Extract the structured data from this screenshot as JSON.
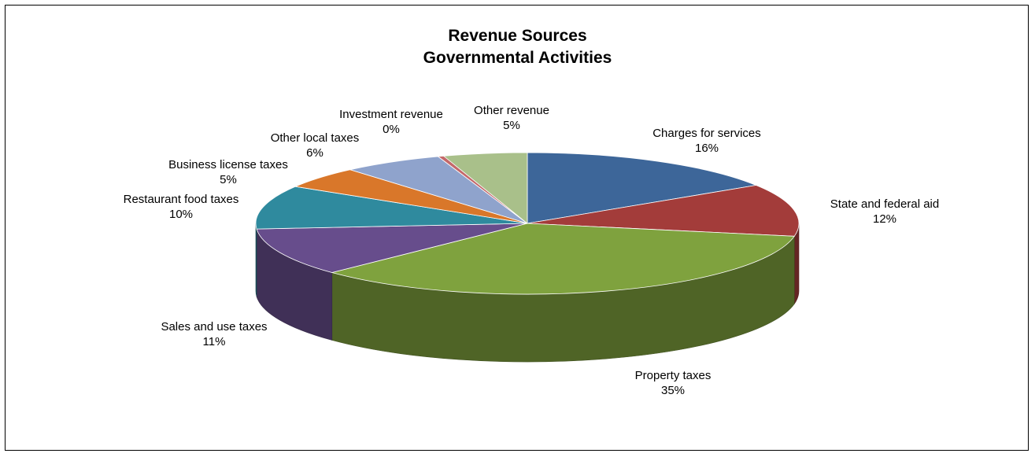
{
  "chart_data": {
    "type": "pie",
    "title": [
      "Revenue Sources",
      "Governmental Activities"
    ],
    "three_d": true,
    "slices": [
      {
        "name": "Charges for services",
        "value": 16,
        "label": "16%",
        "color": "#3D6699"
      },
      {
        "name": "State and federal aid",
        "value": 12,
        "label": "12%",
        "color": "#A33C3A"
      },
      {
        "name": "Property taxes",
        "value": 35,
        "label": "35%",
        "color": "#7FA23E"
      },
      {
        "name": "Sales and use taxes",
        "value": 11,
        "label": "11%",
        "color": "#674D8C"
      },
      {
        "name": "Restaurant food taxes",
        "value": 10,
        "label": "10%",
        "color": "#2F8A9E"
      },
      {
        "name": "Business license taxes",
        "value": 5,
        "label": "5%",
        "color": "#D9772A"
      },
      {
        "name": "Other local taxes",
        "value": 6,
        "label": "6%",
        "color": "#8FA3CC"
      },
      {
        "name": "Investment revenue",
        "value": 0,
        "label": "0%",
        "color": "#C4686A"
      },
      {
        "name": "Other revenue",
        "value": 5,
        "label": "5%",
        "color": "#A9C08A"
      }
    ]
  }
}
